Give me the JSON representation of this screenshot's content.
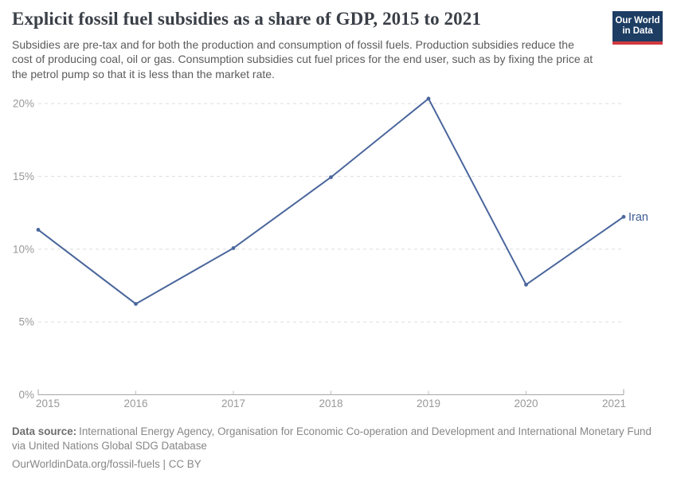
{
  "header": {
    "title": "Explicit fossil fuel subsidies as a share of GDP, 2015 to 2021",
    "subtitle": "Subsidies are pre-tax and for both the production and consumption of fossil fuels. Production subsidies reduce the cost of producing coal, oil or gas. Consumption subsidies cut fuel prices for the end user, such as by fixing the price at the petrol pump so that it is less than the market rate.",
    "logo": {
      "line1": "Our World",
      "line2": "in Data",
      "bg_color": "#1d3d63",
      "bar_color": "#cf3a3f"
    }
  },
  "chart_data": {
    "type": "line",
    "title": "Explicit fossil fuel subsidies as a share of GDP, 2015 to 2021",
    "x": [
      2015,
      2016,
      2017,
      2018,
      2019,
      2020,
      2021
    ],
    "series": [
      {
        "name": "Iran",
        "values": [
          11.33,
          6.24,
          10.07,
          14.94,
          20.34,
          7.56,
          12.22
        ],
        "color": "#4a669c",
        "label_color": "#3d5c94"
      }
    ],
    "xlabel": "",
    "ylabel": "",
    "ylim": [
      0,
      20
    ],
    "yticks": [
      0,
      5,
      10,
      15,
      20
    ],
    "ytick_suffix": "%",
    "grid": "horizontal-dashed",
    "legend_position": "end-of-line",
    "colors": {
      "gridline": "#dddddd",
      "axis": "#a6a6a6",
      "tick": "#bfbfbf",
      "tick_label": "#999999"
    }
  },
  "footer": {
    "data_source_label": "Data source:",
    "data_source_text": "International Energy Agency, Organisation for Economic Co-operation and Development and International Monetary Fund via United Nations Global SDG Database",
    "attribution": "OurWorldinData.org/fossil-fuels | CC BY"
  }
}
